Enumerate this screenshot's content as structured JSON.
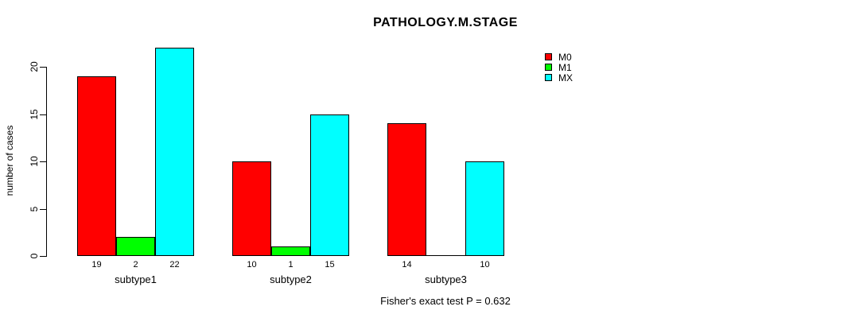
{
  "chart_data": {
    "type": "bar",
    "title": "PATHOLOGY.M.STAGE",
    "ylabel": "number of cases",
    "xlabel": "",
    "categories": [
      "subtype1",
      "subtype2",
      "subtype3"
    ],
    "series": [
      {
        "name": "M0",
        "color": "#ff0000",
        "values": [
          19,
          10,
          14
        ]
      },
      {
        "name": "M1",
        "color": "#00ff00",
        "values": [
          2,
          1,
          0
        ]
      },
      {
        "name": "MX",
        "color": "#00ffff",
        "values": [
          22,
          15,
          10
        ]
      }
    ],
    "yticks": [
      0,
      5,
      10,
      15,
      20
    ],
    "ylim": [
      0,
      22
    ],
    "grid": false,
    "bar_value_labels_shown": true,
    "legend_position": "top-right",
    "caption": "Fisher's exact test P = 0.632"
  },
  "colors": {
    "background": "#ffffff",
    "axis": "#000000",
    "text": "#000000"
  }
}
